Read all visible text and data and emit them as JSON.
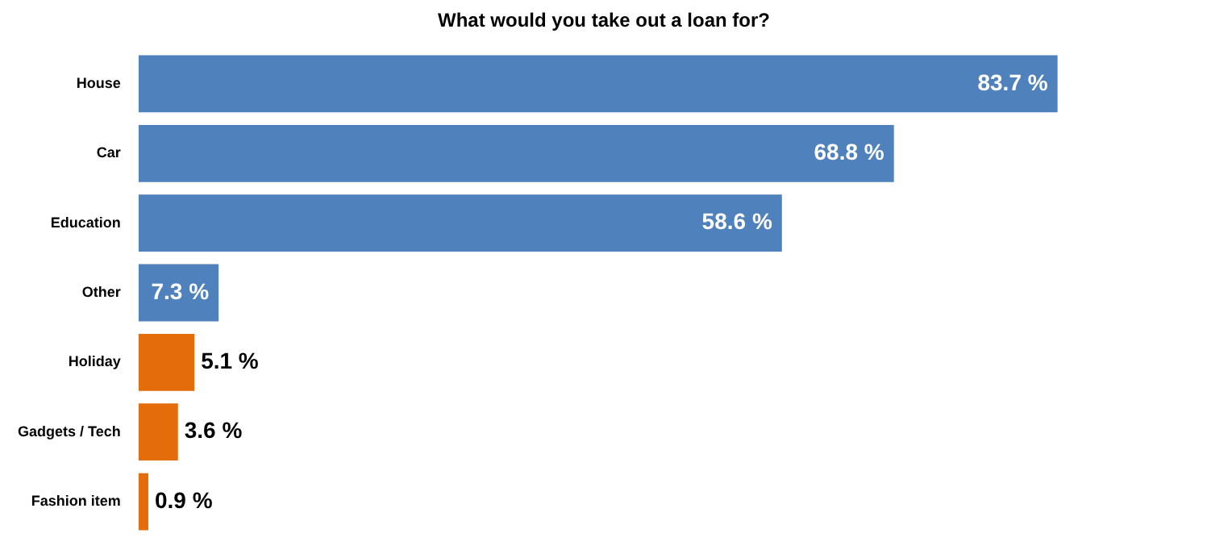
{
  "chart_data": {
    "type": "bar",
    "orientation": "horizontal",
    "title": "What would you take out a loan for?",
    "categories": [
      "House",
      "Car",
      "Education",
      "Other",
      "Holiday",
      "Gadgets / Tech",
      "Fashion item"
    ],
    "values": [
      83.7,
      68.8,
      58.6,
      7.3,
      5.1,
      3.6,
      0.9
    ],
    "colors": [
      "#4f81bd",
      "#4f81bd",
      "#4f81bd",
      "#4f81bd",
      "#e46c0a",
      "#e46c0a",
      "#e46c0a"
    ],
    "value_labels": [
      "83.7 %",
      "68.8 %",
      "58.6 %",
      "7.3 %",
      "5.1 %",
      "3.6 %",
      "0.9 %"
    ],
    "legend": false
  }
}
